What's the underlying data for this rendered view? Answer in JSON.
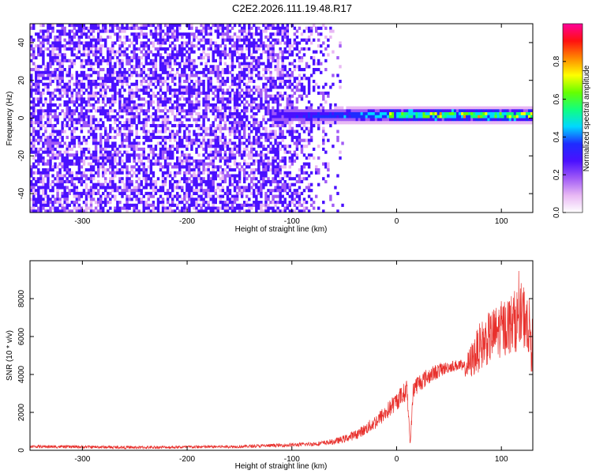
{
  "title": "C2E2.2026.111.19.48.R17",
  "colors": {
    "snr_line": "#e8302c",
    "spectrogram_noise": "#7f2cf0",
    "colormap": [
      "#ffffff",
      "#e8b8f4",
      "#a05af6",
      "#4a10ff",
      "#1e2cff",
      "#00d8ff",
      "#10ff80",
      "#66ff00",
      "#ffff00",
      "#ff8800",
      "#ff1010",
      "#ff0099"
    ]
  },
  "chart_data": [
    {
      "type": "heatmap",
      "title": "C2E2.2026.111.19.48.R17",
      "xlabel": "Height of straight line (km)",
      "ylabel": "Frequency (Hz)",
      "xlim": [
        -350,
        130
      ],
      "ylim": [
        -50,
        50
      ],
      "xticks": [
        -300,
        -200,
        -100,
        0,
        100
      ],
      "yticks": [
        -40,
        -20,
        0,
        20,
        40
      ],
      "grid": false,
      "description_values": {
        "noise_region_x": [
          -350,
          -60
        ],
        "signal_band_center_hz": 1.5,
        "signal_band_halfwidth_hz": 3,
        "signal_onset_x": -120,
        "signal_strengthens_x": -10
      },
      "colorbar": {
        "label": "Normalized spectral amplitude",
        "range": [
          0,
          1
        ],
        "ticks": [
          0.0,
          0.2,
          0.4,
          0.6,
          0.8
        ]
      }
    },
    {
      "type": "line",
      "title": "",
      "xlabel": "Height of straight line (km)",
      "ylabel": "SNR (10 * v/v)",
      "xlim": [
        -350,
        130
      ],
      "ylim": [
        0,
        10000
      ],
      "xticks": [
        -300,
        -200,
        -100,
        0,
        100
      ],
      "yticks": [
        0,
        2000,
        4000,
        6000,
        8000
      ],
      "grid": false,
      "series": [
        {
          "name": "SNR",
          "x": [
            -350,
            -300,
            -250,
            -200,
            -150,
            -100,
            -75,
            -60,
            -50,
            -40,
            -30,
            -20,
            -10,
            0,
            10,
            13,
            16,
            20,
            30,
            40,
            50,
            60,
            65,
            70,
            80,
            90,
            100,
            110,
            120,
            125,
            130
          ],
          "y": [
            200,
            180,
            150,
            170,
            200,
            280,
            350,
            450,
            600,
            800,
            1100,
            1500,
            2000,
            2600,
            3200,
            300,
            3300,
            3500,
            3900,
            4200,
            4400,
            4500,
            4300,
            4600,
            5500,
            6000,
            6400,
            6700,
            7100,
            6900,
            5400
          ],
          "noise_amplitude": [
            80,
            80,
            80,
            80,
            80,
            100,
            120,
            150,
            200,
            250,
            300,
            400,
            450,
            500,
            550,
            100,
            550,
            500,
            450,
            400,
            300,
            300,
            400,
            900,
            1300,
            1400,
            1500,
            1600,
            1800,
            1700,
            1500
          ]
        }
      ]
    }
  ]
}
